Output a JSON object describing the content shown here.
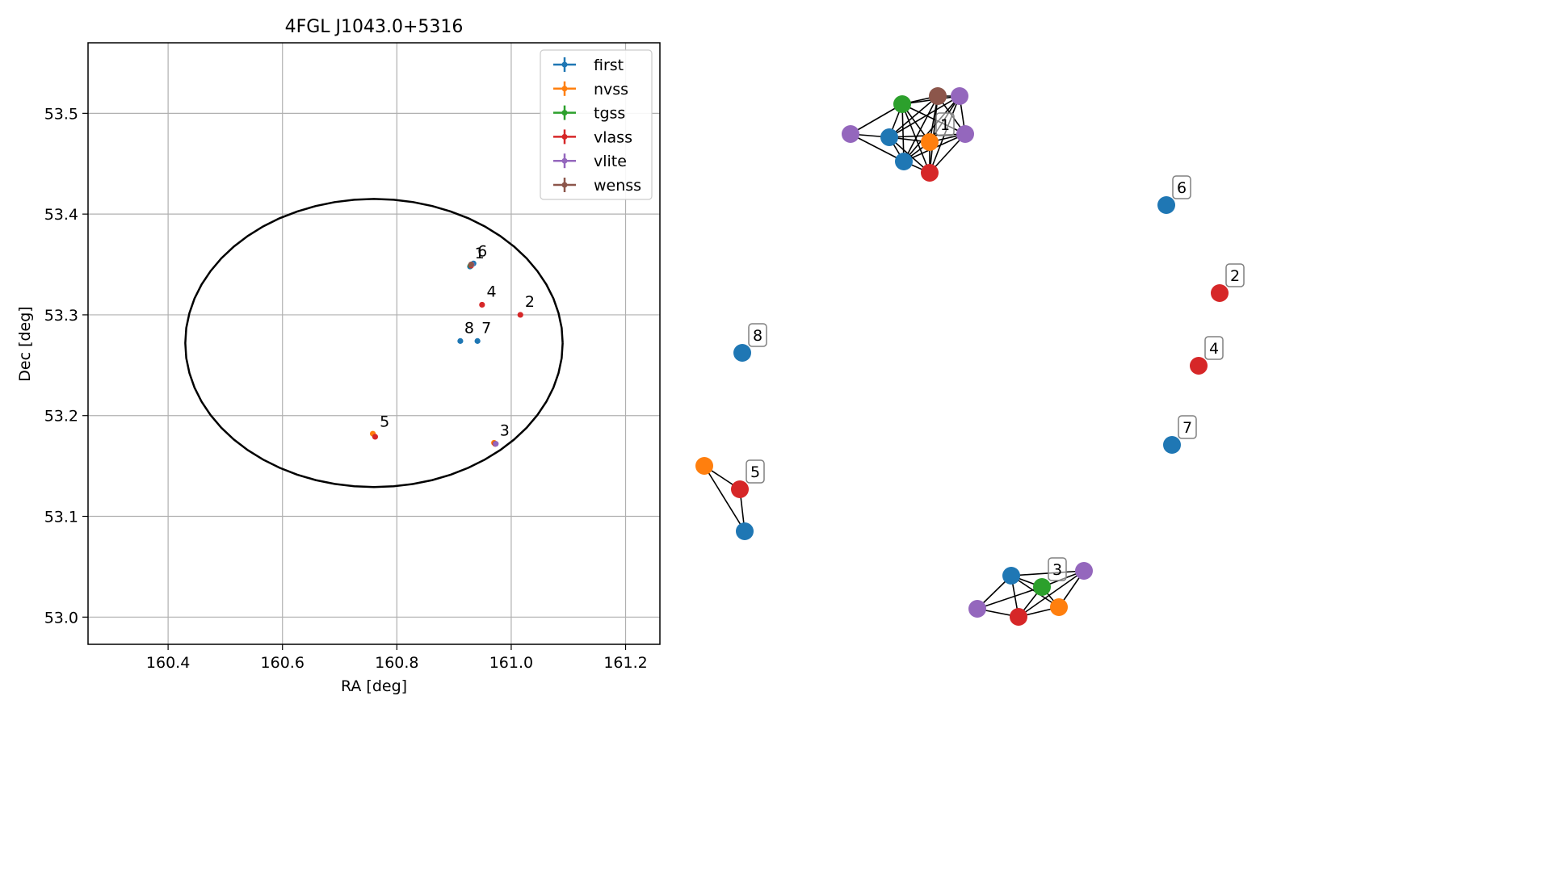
{
  "chart_data": [
    {
      "type": "scatter",
      "title": "4FGL J1043.0+5316",
      "xlabel": "RA [deg]",
      "ylabel": "Dec [deg]",
      "xlim": [
        160.26,
        161.26
      ],
      "ylim": [
        52.973,
        53.57
      ],
      "xticks": [
        160.4,
        160.6,
        160.8,
        161.0,
        161.2
      ],
      "xtick_labels": [
        "160.4",
        "160.6",
        "160.8",
        "161.0",
        "161.2"
      ],
      "yticks": [
        53.0,
        53.1,
        53.2,
        53.3,
        53.4,
        53.5
      ],
      "ytick_labels": [
        "53.0",
        "53.1",
        "53.2",
        "53.3",
        "53.4",
        "53.5"
      ],
      "grid": true,
      "legend_position": "top-right",
      "legend": [
        "first",
        "nvss",
        "tgss",
        "vlass",
        "vlite",
        "wenss"
      ],
      "ellipse": {
        "ra_center": 160.76,
        "dec_center": 53.272,
        "ra_semi_axis": 0.33,
        "dec_semi_axis": 0.143
      },
      "series": [
        {
          "name": "first",
          "color": "#1f77b4",
          "points": [
            {
              "ra": 160.928,
              "dec": 53.348
            },
            {
              "ra": 160.934,
              "dec": 53.351
            },
            {
              "ra": 160.911,
              "dec": 53.274
            },
            {
              "ra": 160.941,
              "dec": 53.274
            }
          ]
        },
        {
          "name": "nvss",
          "color": "#ff7f0e",
          "points": [
            {
              "ra": 160.93,
              "dec": 53.349
            },
            {
              "ra": 160.758,
              "dec": 53.182
            },
            {
              "ra": 160.97,
              "dec": 53.173
            }
          ]
        },
        {
          "name": "tgss",
          "color": "#2ca02c",
          "points": [
            {
              "ra": 160.929,
              "dec": 53.349
            },
            {
              "ra": 160.972,
              "dec": 53.172
            }
          ]
        },
        {
          "name": "vlass",
          "color": "#d62728",
          "points": [
            {
              "ra": 160.93,
              "dec": 53.349
            },
            {
              "ra": 160.949,
              "dec": 53.31
            },
            {
              "ra": 161.016,
              "dec": 53.3
            },
            {
              "ra": 160.762,
              "dec": 53.179
            },
            {
              "ra": 160.972,
              "dec": 53.172
            }
          ]
        },
        {
          "name": "vlite",
          "color": "#9467bd",
          "points": [
            {
              "ra": 160.931,
              "dec": 53.35
            },
            {
              "ra": 160.973,
              "dec": 53.172
            }
          ]
        },
        {
          "name": "wenss",
          "color": "#8c564b",
          "points": [
            {
              "ra": 160.93,
              "dec": 53.35
            }
          ]
        }
      ],
      "cluster_labels": [
        {
          "text": "1",
          "ra": 160.936,
          "dec": 53.356
        },
        {
          "text": "6",
          "ra": 160.941,
          "dec": 53.358
        },
        {
          "text": "4",
          "ra": 160.957,
          "dec": 53.318
        },
        {
          "text": "2",
          "ra": 161.024,
          "dec": 53.308
        },
        {
          "text": "8",
          "ra": 160.918,
          "dec": 53.282
        },
        {
          "text": "7",
          "ra": 160.948,
          "dec": 53.282
        },
        {
          "text": "5",
          "ra": 160.77,
          "dec": 53.189
        },
        {
          "text": "3",
          "ra": 160.98,
          "dec": 53.18
        }
      ]
    },
    {
      "type": "network",
      "colors": {
        "first": "#1f77b4",
        "nvss": "#ff7f0e",
        "tgss": "#2ca02c",
        "vlass": "#d62728",
        "vlite": "#9467bd",
        "wenss": "#8c564b"
      },
      "groups": [
        {
          "label": "1",
          "label_node": 4,
          "nodes": [
            {
              "catalog": "vlite",
              "px": [
                1053,
                166
              ]
            },
            {
              "catalog": "first",
              "px": [
                1101,
                170
              ]
            },
            {
              "catalog": "tgss",
              "px": [
                1117,
                129
              ]
            },
            {
              "catalog": "first",
              "px": [
                1119,
                200
              ]
            },
            {
              "catalog": "nvss",
              "px": [
                1151,
                176
              ]
            },
            {
              "catalog": "vlass",
              "px": [
                1151,
                214
              ]
            },
            {
              "catalog": "wenss",
              "px": [
                1161,
                119
              ]
            },
            {
              "catalog": "vlite",
              "px": [
                1188,
                119
              ]
            },
            {
              "catalog": "vlite",
              "px": [
                1195,
                166
              ]
            }
          ],
          "edges": [
            [
              0,
              1
            ],
            [
              0,
              2
            ],
            [
              0,
              3
            ],
            [
              1,
              2
            ],
            [
              1,
              3
            ],
            [
              1,
              4
            ],
            [
              1,
              5
            ],
            [
              1,
              6
            ],
            [
              1,
              7
            ],
            [
              1,
              8
            ],
            [
              2,
              3
            ],
            [
              2,
              4
            ],
            [
              2,
              5
            ],
            [
              2,
              6
            ],
            [
              2,
              7
            ],
            [
              2,
              8
            ],
            [
              3,
              4
            ],
            [
              3,
              5
            ],
            [
              3,
              6
            ],
            [
              3,
              7
            ],
            [
              3,
              8
            ],
            [
              4,
              5
            ],
            [
              4,
              6
            ],
            [
              4,
              7
            ],
            [
              4,
              8
            ],
            [
              5,
              6
            ],
            [
              5,
              7
            ],
            [
              5,
              8
            ],
            [
              6,
              7
            ],
            [
              6,
              8
            ],
            [
              7,
              8
            ]
          ]
        },
        {
          "label": "3",
          "label_node": 2,
          "nodes": [
            {
              "catalog": "vlite",
              "px": [
                1210,
                754
              ]
            },
            {
              "catalog": "first",
              "px": [
                1252,
                713
              ]
            },
            {
              "catalog": "tgss",
              "px": [
                1290,
                727
              ]
            },
            {
              "catalog": "vlass",
              "px": [
                1261,
                764
              ]
            },
            {
              "catalog": "nvss",
              "px": [
                1311,
                752
              ]
            },
            {
              "catalog": "vlite",
              "px": [
                1342,
                707
              ]
            }
          ],
          "edges": [
            [
              0,
              1
            ],
            [
              0,
              2
            ],
            [
              0,
              3
            ],
            [
              1,
              2
            ],
            [
              1,
              3
            ],
            [
              1,
              4
            ],
            [
              1,
              5
            ],
            [
              2,
              3
            ],
            [
              2,
              4
            ],
            [
              2,
              5
            ],
            [
              3,
              4
            ],
            [
              3,
              5
            ],
            [
              4,
              5
            ]
          ]
        },
        {
          "label": "5",
          "label_node": 1,
          "nodes": [
            {
              "catalog": "nvss",
              "px": [
                872,
                577
              ]
            },
            {
              "catalog": "vlass",
              "px": [
                916,
                606
              ]
            },
            {
              "catalog": "first",
              "px": [
                922,
                658
              ]
            }
          ],
          "edges": [
            [
              0,
              1
            ],
            [
              0,
              2
            ],
            [
              1,
              2
            ]
          ]
        },
        {
          "label": "6",
          "label_node": 0,
          "nodes": [
            {
              "catalog": "first",
              "px": [
                1444,
                254
              ]
            }
          ],
          "edges": []
        },
        {
          "label": "2",
          "label_node": 0,
          "nodes": [
            {
              "catalog": "vlass",
              "px": [
                1510,
                363
              ]
            }
          ],
          "edges": []
        },
        {
          "label": "8",
          "label_node": 0,
          "nodes": [
            {
              "catalog": "first",
              "px": [
                919,
                437
              ]
            }
          ],
          "edges": []
        },
        {
          "label": "4",
          "label_node": 0,
          "nodes": [
            {
              "catalog": "vlass",
              "px": [
                1484,
                453
              ]
            }
          ],
          "edges": []
        },
        {
          "label": "7",
          "label_node": 0,
          "nodes": [
            {
              "catalog": "first",
              "px": [
                1451,
                551
              ]
            }
          ],
          "edges": []
        }
      ]
    }
  ]
}
